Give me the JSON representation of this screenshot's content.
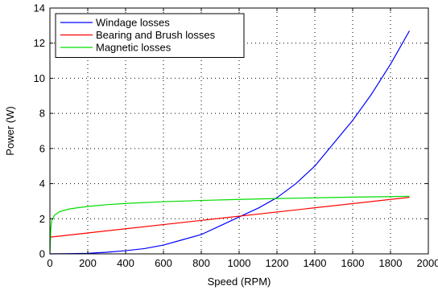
{
  "chart_data": {
    "type": "line",
    "xlabel": "Speed (RPM)",
    "ylabel": "Power (W)",
    "xlim": [
      0,
      2000
    ],
    "ylim": [
      0,
      14
    ],
    "xticks": [
      0,
      200,
      400,
      600,
      800,
      1000,
      1200,
      1400,
      1600,
      1800,
      2000
    ],
    "yticks": [
      0,
      2,
      4,
      6,
      8,
      10,
      12,
      14
    ],
    "grid": "dotted",
    "legend_position": "top-left",
    "series": [
      {
        "name": "Windage losses",
        "color": "#0000ff",
        "x": [
          0,
          100,
          200,
          300,
          400,
          500,
          600,
          700,
          800,
          900,
          1000,
          1100,
          1200,
          1300,
          1400,
          1500,
          1600,
          1700,
          1800,
          1900
        ],
        "y": [
          0,
          0.01,
          0.03,
          0.09,
          0.18,
          0.3,
          0.5,
          0.8,
          1.1,
          1.6,
          2.1,
          2.6,
          3.2,
          4.0,
          5.0,
          6.3,
          7.6,
          9.1,
          10.8,
          12.7
        ]
      },
      {
        "name": "Bearing and Brush losses",
        "color": "#ff0000",
        "x": [
          0,
          1900
        ],
        "y": [
          0.95,
          3.22
        ]
      },
      {
        "name": "Magnetic losses",
        "color": "#00dd00",
        "x": [
          0,
          5,
          10,
          25,
          50,
          100,
          150,
          200,
          300,
          400,
          600,
          800,
          1000,
          1200,
          1400,
          1600,
          1800,
          1900
        ],
        "y": [
          0,
          1.5,
          1.9,
          2.2,
          2.4,
          2.55,
          2.63,
          2.7,
          2.8,
          2.87,
          2.97,
          3.04,
          3.1,
          3.15,
          3.19,
          3.23,
          3.26,
          3.28
        ]
      }
    ]
  }
}
